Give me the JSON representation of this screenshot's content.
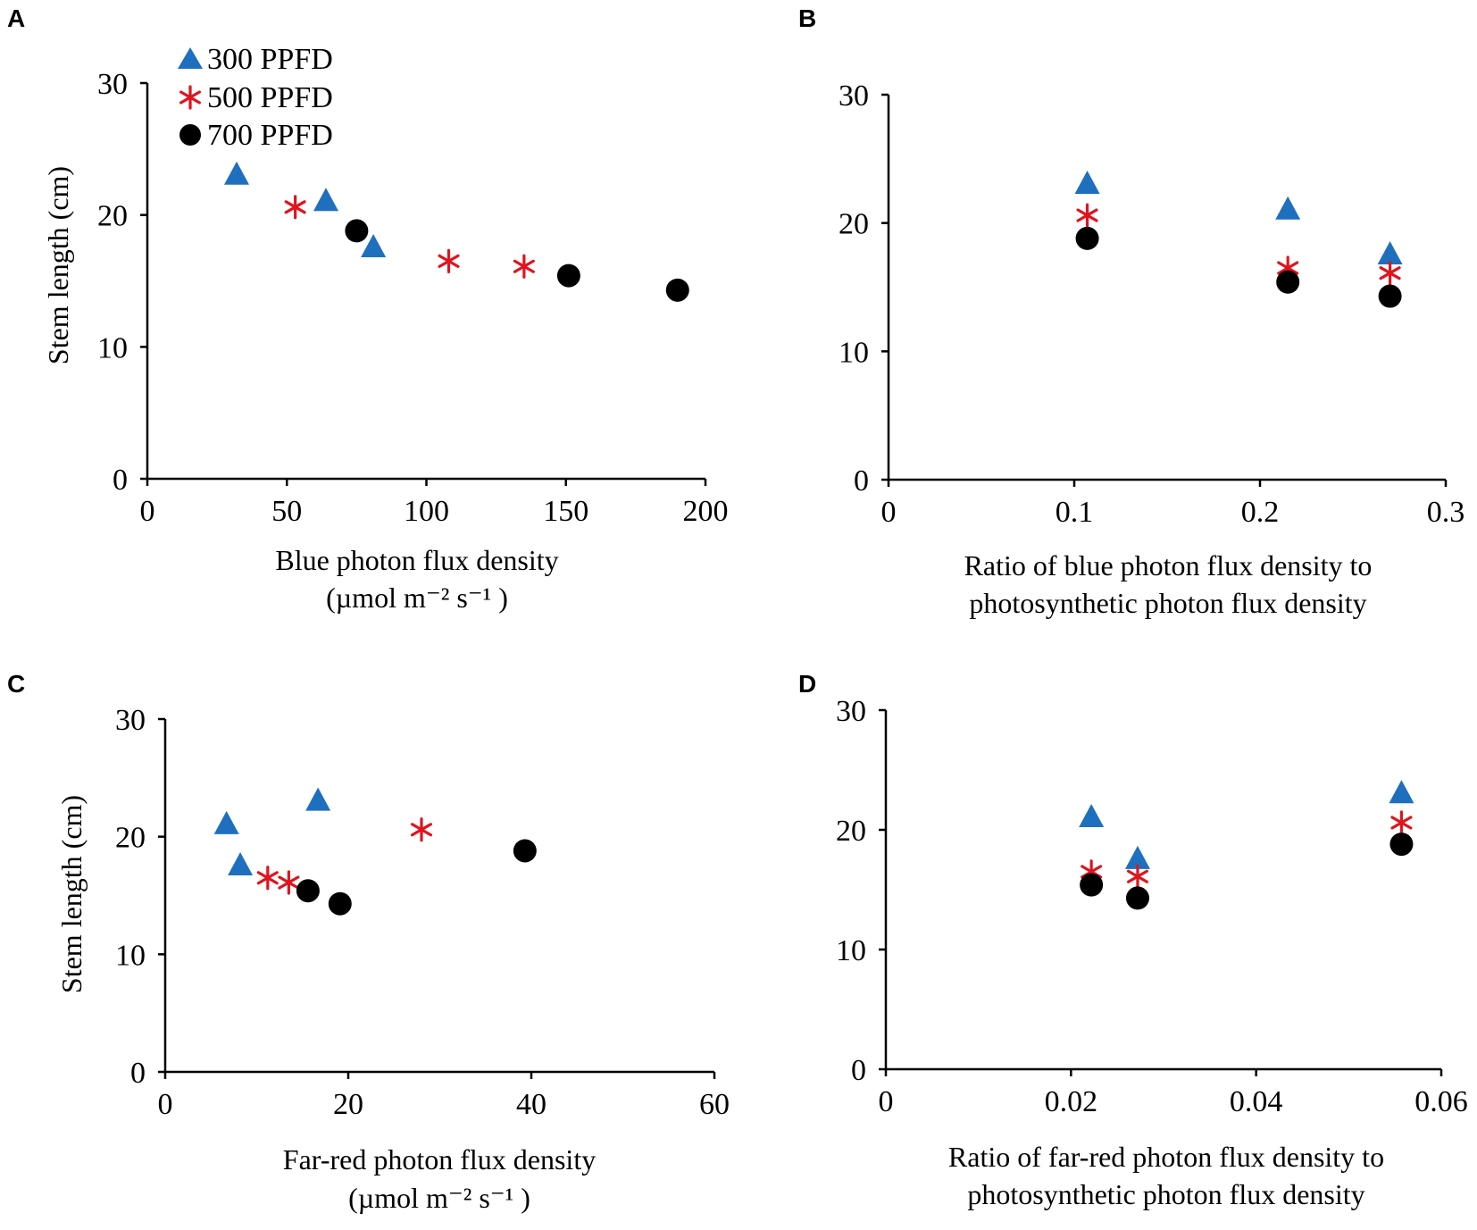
{
  "figure": {
    "legend": [
      {
        "name": "300 PPFD",
        "marker": "triangle",
        "color": "#1f6fbf"
      },
      {
        "name": "500 PPFD",
        "marker": "asterisk",
        "color": "#e0141e"
      },
      {
        "name": "700 PPFD",
        "marker": "circle",
        "color": "#000000"
      }
    ]
  },
  "chart_data": [
    {
      "panel": "A",
      "type": "scatter",
      "title": "",
      "xlabel": [
        "Blue photon flux density",
        "(µmol m⁻² s⁻¹ )"
      ],
      "ylabel": "Stem length (cm)",
      "xlim": [
        0,
        200
      ],
      "ylim": [
        0,
        30
      ],
      "xticks": [
        0,
        50,
        100,
        150,
        200
      ],
      "xtick_labels": [
        "0",
        "50",
        "100",
        "150",
        "200"
      ],
      "yticks": [
        0,
        10,
        20,
        30
      ],
      "ytick_labels": [
        "0",
        "10",
        "20",
        "30"
      ],
      "legend_position": "top-left",
      "series": [
        {
          "name": "300 PPFD",
          "points": [
            [
              32,
              23.0
            ],
            [
              64,
              21.0
            ],
            [
              81,
              17.5
            ]
          ]
        },
        {
          "name": "500 PPFD",
          "points": [
            [
              53,
              20.6
            ],
            [
              108,
              16.5
            ],
            [
              135,
              16.1
            ]
          ]
        },
        {
          "name": "700 PPFD",
          "points": [
            [
              75,
              18.8
            ],
            [
              151,
              15.4
            ],
            [
              190,
              14.3
            ]
          ]
        }
      ]
    },
    {
      "panel": "B",
      "type": "scatter",
      "title": "",
      "xlabel": [
        "Ratio of blue photon flux density to",
        "photosynthetic photon flux density"
      ],
      "ylabel": "",
      "xlim": [
        0,
        0.3
      ],
      "ylim": [
        0,
        30
      ],
      "xticks": [
        0,
        0.1,
        0.2,
        0.3
      ],
      "xtick_labels": [
        "0",
        "0.1",
        "0.2",
        "0.3"
      ],
      "yticks": [
        0,
        10,
        20,
        30
      ],
      "ytick_labels": [
        "0",
        "10",
        "20",
        "30"
      ],
      "series": [
        {
          "name": "300 PPFD",
          "points": [
            [
              0.107,
              23.0
            ],
            [
              0.215,
              21.0
            ],
            [
              0.27,
              17.5
            ]
          ]
        },
        {
          "name": "500 PPFD",
          "points": [
            [
              0.107,
              20.6
            ],
            [
              0.215,
              16.5
            ],
            [
              0.27,
              16.1
            ]
          ]
        },
        {
          "name": "700 PPFD",
          "points": [
            [
              0.107,
              18.8
            ],
            [
              0.215,
              15.4
            ],
            [
              0.27,
              14.3
            ]
          ]
        }
      ]
    },
    {
      "panel": "C",
      "type": "scatter",
      "title": "",
      "xlabel": [
        "Far-red photon flux density",
        "(µmol m⁻² s⁻¹ )"
      ],
      "ylabel": "Stem length (cm)",
      "xlim": [
        0,
        60
      ],
      "ylim": [
        0,
        30
      ],
      "xticks": [
        0,
        20,
        40,
        60
      ],
      "xtick_labels": [
        "0",
        "20",
        "40",
        "60"
      ],
      "yticks": [
        0,
        10,
        20,
        30
      ],
      "ytick_labels": [
        "0",
        "10",
        "20",
        "30"
      ],
      "series": [
        {
          "name": "300 PPFD",
          "points": [
            [
              6.7,
              21.0
            ],
            [
              8.2,
              17.5
            ],
            [
              16.7,
              23.0
            ]
          ]
        },
        {
          "name": "500 PPFD",
          "points": [
            [
              11.2,
              16.5
            ],
            [
              13.5,
              16.1
            ],
            [
              28.0,
              20.6
            ]
          ]
        },
        {
          "name": "700 PPFD",
          "points": [
            [
              15.6,
              15.4
            ],
            [
              19.1,
              14.3
            ],
            [
              39.3,
              18.8
            ]
          ]
        }
      ]
    },
    {
      "panel": "D",
      "type": "scatter",
      "title": "",
      "xlabel": [
        "Ratio of far-red photon flux density to",
        "photosynthetic photon flux density"
      ],
      "ylabel": "",
      "xlim": [
        0,
        0.06
      ],
      "ylim": [
        0,
        30
      ],
      "xticks": [
        0,
        0.02,
        0.04,
        0.06
      ],
      "xtick_labels": [
        "0",
        "0.02",
        "0.04",
        "0.06"
      ],
      "yticks": [
        0,
        10,
        20,
        30
      ],
      "ytick_labels": [
        "0",
        "10",
        "20",
        "30"
      ],
      "series": [
        {
          "name": "300 PPFD",
          "points": [
            [
              0.0222,
              21.0
            ],
            [
              0.0272,
              17.5
            ],
            [
              0.0557,
              23.0
            ]
          ]
        },
        {
          "name": "500 PPFD",
          "points": [
            [
              0.0222,
              16.5
            ],
            [
              0.0272,
              16.1
            ],
            [
              0.0557,
              20.6
            ]
          ]
        },
        {
          "name": "700 PPFD",
          "points": [
            [
              0.0222,
              15.4
            ],
            [
              0.0272,
              14.3
            ],
            [
              0.0557,
              18.8
            ]
          ]
        }
      ]
    }
  ]
}
